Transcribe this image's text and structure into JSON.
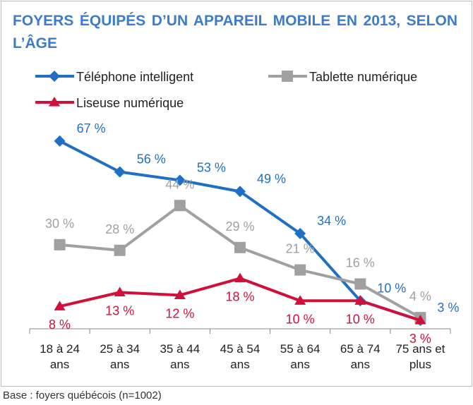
{
  "chart_data": {
    "type": "line",
    "title": "FOYERS ÉQUIPÉS D’UN APPAREIL MOBILE EN 2013, SELON L’ÂGE",
    "categories": [
      "18 à 24 ans",
      "25 à 34 ans",
      "35 à 44 ans",
      "45 à 54 ans",
      "55 à 64 ans",
      "65 à 74 ans",
      "75 ans et plus"
    ],
    "ylim": [
      0,
      70
    ],
    "series": [
      {
        "name": "Téléphone intelligent",
        "color": "#1f6fc5",
        "marker": "diamond",
        "values": [
          67,
          56,
          53,
          49,
          34,
          10,
          3
        ],
        "value_labels": [
          "67 %",
          "56 %",
          "53 %",
          "49 %",
          "34 %",
          "10 %",
          "3 %"
        ]
      },
      {
        "name": "Tablette numérique",
        "color": "#a0a0a0",
        "marker": "square",
        "values": [
          30,
          28,
          44,
          29,
          21,
          16,
          4
        ],
        "value_labels": [
          "30 %",
          "28 %",
          "44 %",
          "29 %",
          "21 %",
          "16 %",
          "4 %"
        ]
      },
      {
        "name": "Liseuse numérique",
        "color": "#d0103a",
        "marker": "triangle",
        "values": [
          8,
          13,
          12,
          18,
          10,
          10,
          3
        ],
        "value_labels": [
          "8 %",
          "13 %",
          "12 %",
          "18 %",
          "10 %",
          "10 %",
          "3 %"
        ]
      }
    ],
    "note": "Base : foyers québécois (n=1002)"
  }
}
